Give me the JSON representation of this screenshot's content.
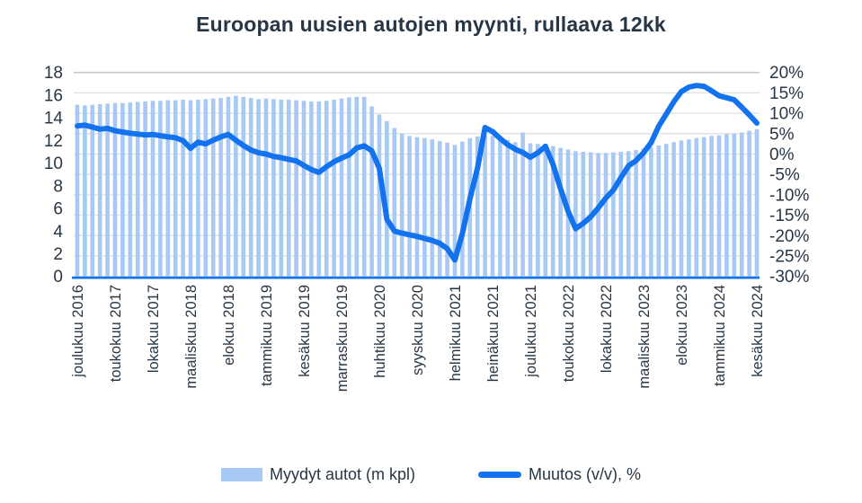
{
  "chart_data": {
    "type": "combo",
    "title": "Euroopan uusien autojen myynti, rullaava 12kk",
    "n_points": 91,
    "x_tick_every": 5,
    "x_tick_labels": [
      "joulukuu 2016",
      "toukokuu 2017",
      "lokakuu 2017",
      "maaliskuu 2018",
      "elokuu 2018",
      "tammikuu 2019",
      "kesäkuu 2019",
      "marraskuu 2019",
      "huhtikuu 2020",
      "syyskuu 2020",
      "helmikuu 2021",
      "heinäkuu 2021",
      "joulukuu 2021",
      "toukokuu 2022",
      "lokakuu 2022",
      "maaliskuu 2023",
      "elokuu 2023",
      "tammikuu 2024",
      "kesäkuu 2024"
    ],
    "axes": {
      "left": {
        "min": 0,
        "max": 18,
        "step": 2,
        "tick_labels": [
          "18",
          "16",
          "14",
          "12",
          "10",
          "8",
          "6",
          "4",
          "2",
          "0"
        ]
      },
      "right": {
        "min": -30,
        "max": 20,
        "step": 5,
        "tick_labels": [
          "20%",
          "15%",
          "10%",
          "5%",
          "0%",
          "-5%",
          "-10%",
          "-15%",
          "-20%",
          "-25%",
          "-30%"
        ]
      }
    },
    "grid": "horizontal",
    "legend_position": "bottom",
    "colors": {
      "bar": "#a7c9f3",
      "line": "#1372ee",
      "text": "#273645",
      "grid": "#dfe0e3",
      "grid_top": "#c6c9ce"
    },
    "series": [
      {
        "name": "Myydyt autot (m kpl)",
        "type": "bar",
        "axis": "left",
        "values": [
          15.15,
          15.1,
          15.15,
          15.2,
          15.25,
          15.3,
          15.3,
          15.35,
          15.4,
          15.45,
          15.5,
          15.5,
          15.55,
          15.55,
          15.6,
          15.55,
          15.6,
          15.65,
          15.7,
          15.75,
          15.85,
          15.95,
          15.85,
          15.75,
          15.65,
          15.7,
          15.65,
          15.6,
          15.6,
          15.55,
          15.5,
          15.45,
          15.45,
          15.5,
          15.6,
          15.7,
          15.8,
          15.85,
          15.85,
          15.0,
          14.3,
          13.7,
          13.1,
          12.6,
          12.4,
          12.3,
          12.2,
          12.1,
          11.95,
          11.8,
          11.6,
          11.9,
          12.2,
          12.35,
          12.45,
          12.4,
          12.25,
          12.05,
          11.85,
          12.7,
          11.75,
          11.7,
          11.7,
          11.5,
          11.35,
          11.2,
          11.05,
          11.0,
          10.95,
          10.9,
          10.9,
          10.95,
          11.0,
          11.05,
          11.15,
          11.3,
          11.4,
          11.55,
          11.7,
          11.85,
          12.0,
          12.1,
          12.2,
          12.3,
          12.4,
          12.45,
          12.55,
          12.6,
          12.7,
          12.85,
          13.0
        ]
      },
      {
        "name": "Muutos (v/v), %",
        "type": "line",
        "axis": "right",
        "values": [
          6.9,
          7.1,
          6.6,
          6.1,
          6.3,
          5.7,
          5.4,
          5.1,
          4.9,
          4.7,
          4.8,
          4.5,
          4.2,
          4.0,
          3.3,
          1.4,
          2.9,
          2.5,
          3.4,
          4.2,
          4.8,
          3.4,
          2.1,
          1.0,
          0.3,
          0.0,
          -0.6,
          -0.9,
          -1.3,
          -1.7,
          -2.8,
          -3.8,
          -4.5,
          -3.1,
          -1.9,
          -1.0,
          -0.2,
          1.5,
          2.0,
          0.8,
          -3.5,
          -16.0,
          -18.9,
          -19.4,
          -19.8,
          -20.2,
          -20.7,
          -21.2,
          -21.9,
          -23.2,
          -26.0,
          -19.5,
          -11.0,
          -3.5,
          6.5,
          5.5,
          3.8,
          2.3,
          1.2,
          0.4,
          -0.8,
          0.3,
          1.9,
          -2.5,
          -8.5,
          -14.0,
          -18.3,
          -17.0,
          -15.4,
          -13.2,
          -10.8,
          -8.8,
          -5.8,
          -2.9,
          -1.6,
          0.3,
          2.8,
          6.8,
          9.8,
          12.8,
          15.3,
          16.4,
          16.8,
          16.6,
          15.5,
          14.3,
          13.8,
          13.3,
          11.5,
          9.6,
          7.6
        ]
      }
    ]
  }
}
